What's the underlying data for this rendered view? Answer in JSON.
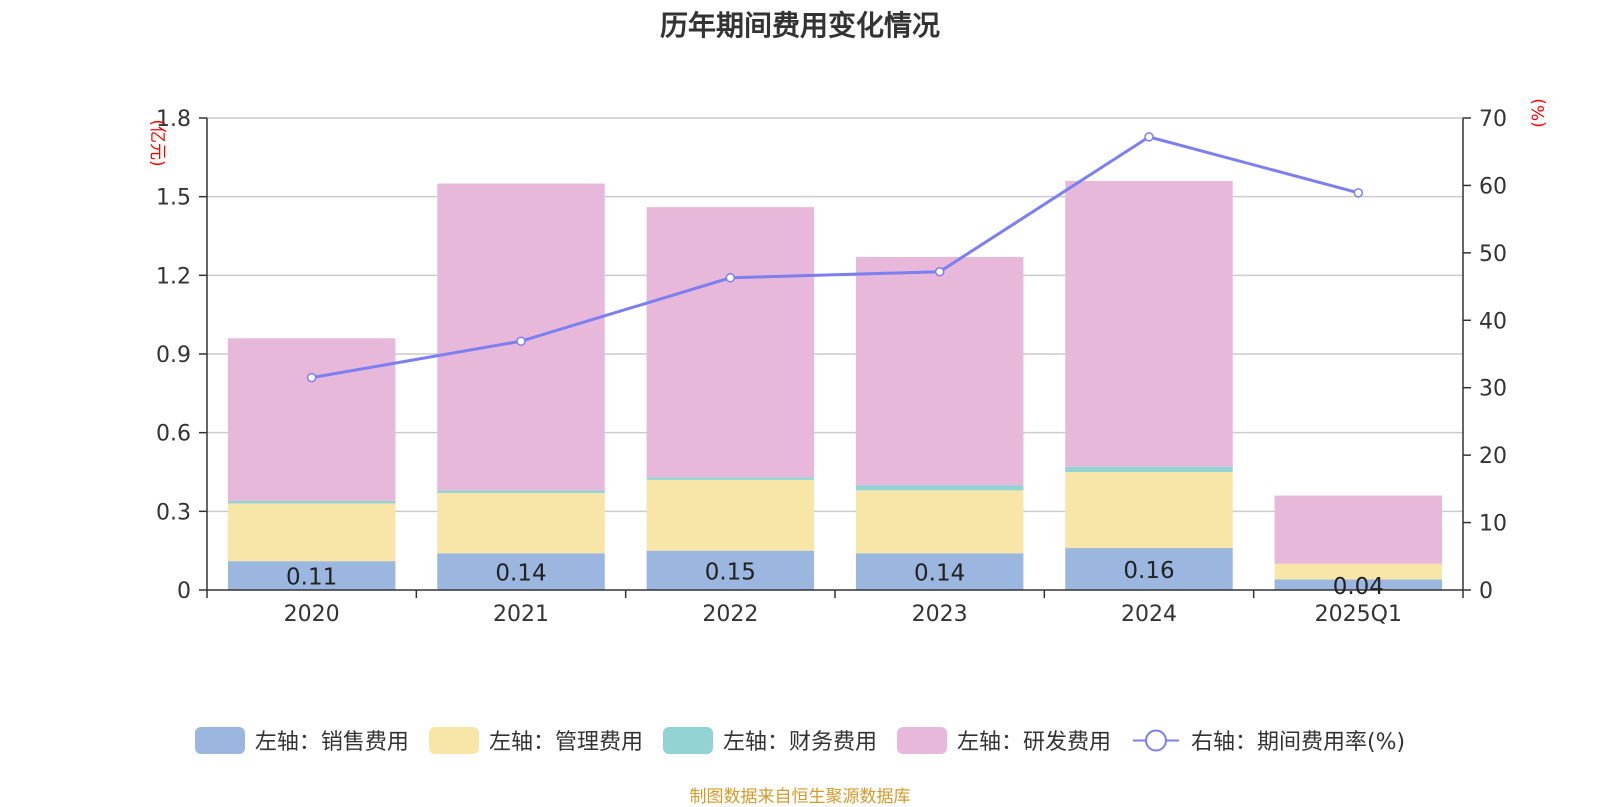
{
  "title": "历年期间费用变化情况",
  "footer": "制图数据来自恒生聚源数据库",
  "chart_data": {
    "type": "bar",
    "stacked": true,
    "categories": [
      "2020",
      "2021",
      "2022",
      "2023",
      "2024",
      "2025Q1"
    ],
    "left_axis": {
      "unit": "(亿元)",
      "ylim": [
        0,
        1.8
      ],
      "ticks": [
        "0",
        "0.3",
        "0.6",
        "0.9",
        "1.2",
        "1.5",
        "1.8"
      ],
      "unit_color": "#ff0000"
    },
    "right_axis": {
      "unit": "(%)",
      "ylim": [
        0,
        70
      ],
      "ticks": [
        "0",
        "10",
        "20",
        "30",
        "40",
        "50",
        "60",
        "70"
      ],
      "unit_color": "#ff0000"
    },
    "grid": true,
    "legend_position": "bottom",
    "series": [
      {
        "name": "左轴：销售费用",
        "axis": "left",
        "kind": "bar",
        "color": "#9bb7e0",
        "values": [
          0.11,
          0.14,
          0.15,
          0.14,
          0.16,
          0.04
        ],
        "labels": [
          "0.11",
          "0.14",
          "0.15",
          "0.14",
          "0.16",
          "0.04"
        ]
      },
      {
        "name": "左轴：管理费用",
        "axis": "left",
        "kind": "bar",
        "color": "#f7e6a8",
        "values": [
          0.22,
          0.23,
          0.27,
          0.24,
          0.29,
          0.06
        ]
      },
      {
        "name": "左轴：财务费用",
        "axis": "left",
        "kind": "bar",
        "color": "#94d3d4",
        "values": [
          0.01,
          0.01,
          0.01,
          0.02,
          0.02,
          0.0
        ]
      },
      {
        "name": "左轴：研发费用",
        "axis": "left",
        "kind": "bar",
        "color": "#e7b8d9",
        "values": [
          0.62,
          1.17,
          1.03,
          0.87,
          1.09,
          0.26
        ]
      },
      {
        "name": "右轴：期间费用率(%)",
        "axis": "right",
        "kind": "line",
        "color": "#7b7ff0",
        "values": [
          31.5,
          36.9,
          46.3,
          47.2,
          67.2,
          58.9
        ]
      }
    ]
  }
}
